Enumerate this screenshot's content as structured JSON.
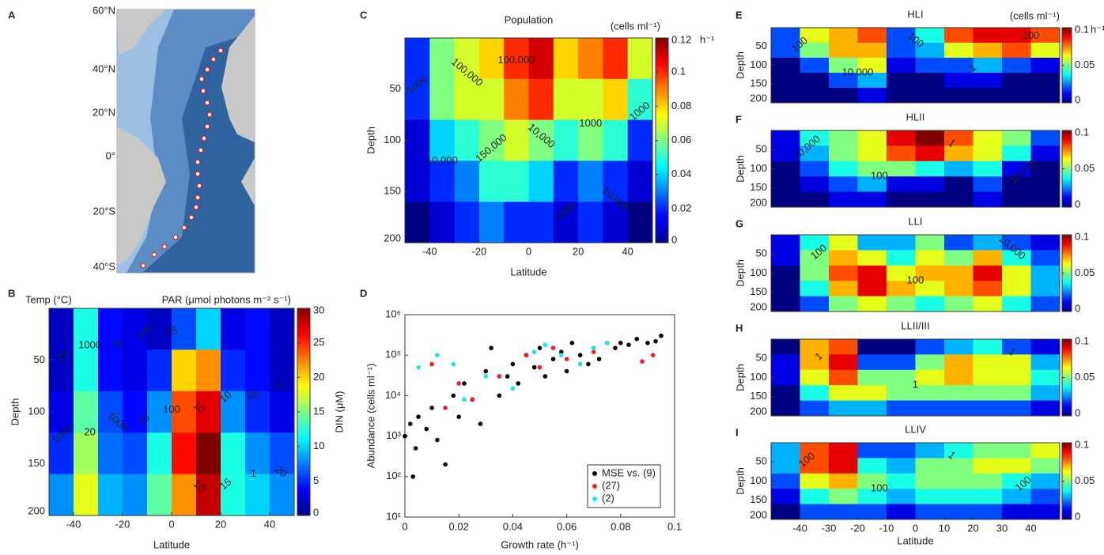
{
  "chart_data": [
    {
      "type": "map",
      "panel": "A",
      "lat_labels": [
        "60°N",
        "40°N",
        "20°N",
        "0°",
        "20°S",
        "40°S"
      ]
    },
    {
      "type": "heatmap",
      "panel": "B",
      "xlabel": "Latitude",
      "ylabel": "Depth",
      "zlabel": "DIN (μM)",
      "annotations": [
        "Temp (°C)",
        "PAR (μmol photons m⁻² s⁻¹)"
      ],
      "xbins": [
        -50,
        -40,
        -30,
        -20,
        -10,
        0,
        10,
        20,
        30,
        40,
        50
      ],
      "ybins": [
        0,
        40,
        80,
        120,
        160,
        200
      ],
      "z": [
        [
          2,
          12,
          4,
          3,
          2,
          6,
          10,
          3,
          4,
          2
        ],
        [
          2,
          12,
          4,
          3,
          5,
          20,
          22,
          5,
          4,
          2
        ],
        [
          3,
          14,
          6,
          4,
          8,
          24,
          27,
          8,
          5,
          3
        ],
        [
          5,
          16,
          7,
          6,
          12,
          26,
          30,
          12,
          8,
          6
        ],
        [
          8,
          18,
          9,
          8,
          14,
          22,
          28,
          12,
          10,
          8
        ]
      ],
      "xlim": [
        -50,
        50
      ],
      "xticks": [
        -40,
        -20,
        0,
        20,
        40
      ],
      "ylim": [
        0,
        200
      ],
      "yticks": [
        50,
        100,
        150,
        200
      ],
      "zlim": [
        0,
        30
      ],
      "zticks": [
        0,
        5,
        10,
        15,
        20,
        25,
        30
      ],
      "colormap": "jet",
      "contour_labels": [
        "25",
        "20",
        "20",
        "15",
        "15",
        "10",
        "15",
        "20",
        "20"
      ],
      "contour_labels_2": [
        "1000",
        "1000",
        "1000",
        "100",
        "100",
        "10",
        "10",
        "1",
        "1"
      ]
    },
    {
      "type": "heatmap",
      "panel": "C",
      "title": "Population",
      "unit": "(cells ml⁻¹)",
      "xlabel": "Latitude",
      "ylabel": "Depth",
      "zunit": "h⁻¹",
      "xbins": [
        -50,
        -40,
        -30,
        -20,
        -10,
        0,
        10,
        20,
        30,
        40,
        50
      ],
      "ybins": [
        0,
        40,
        80,
        120,
        160,
        200
      ],
      "z": [
        [
          0.02,
          0.06,
          0.07,
          0.08,
          0.1,
          0.11,
          0.08,
          0.09,
          0.1,
          0.07
        ],
        [
          0.02,
          0.06,
          0.07,
          0.07,
          0.09,
          0.1,
          0.07,
          0.07,
          0.08,
          0.05
        ],
        [
          0.01,
          0.04,
          0.05,
          0.06,
          0.07,
          0.06,
          0.05,
          0.06,
          0.05,
          0.02
        ],
        [
          0.01,
          0.02,
          0.03,
          0.05,
          0.05,
          0.04,
          0.02,
          0.03,
          0.02,
          0.01
        ],
        [
          0,
          0.01,
          0.02,
          0.03,
          0.02,
          0.02,
          0.01,
          0.02,
          0.01,
          0
        ]
      ],
      "xlim": [
        -50,
        50
      ],
      "xticks": [
        -40,
        -20,
        0,
        20,
        40
      ],
      "ylim": [
        0,
        200
      ],
      "yticks": [
        50,
        100,
        150,
        200
      ],
      "zlim": [
        0,
        0.12
      ],
      "zticks": [
        0,
        0.02,
        0.04,
        0.06,
        0.08,
        0.1,
        0.12
      ],
      "colormap": "jet",
      "contour_labels": [
        "1000",
        "10,000",
        "100,000",
        "150,000",
        "100,000",
        "10,000",
        "1000",
        "1000",
        "10,000",
        "1000"
      ]
    },
    {
      "type": "scatter",
      "panel": "D",
      "xlabel": "Growth rate (h⁻¹)",
      "ylabel": "Abundance (cells ml⁻¹)",
      "xlim": [
        0,
        0.1
      ],
      "xticks": [
        0,
        0.02,
        0.04,
        0.06,
        0.08,
        0.1
      ],
      "ylim": [
        10,
        1000000
      ],
      "log_y": true,
      "yticks": [
        {
          "value": 10,
          "label": "10¹"
        },
        {
          "value": 100,
          "label": "10²"
        },
        {
          "value": 1000,
          "label": "10³"
        },
        {
          "value": 10000,
          "label": "10⁴"
        },
        {
          "value": 100000,
          "label": "10⁵"
        },
        {
          "value": 1000000,
          "label": "10⁶"
        }
      ],
      "legend": "lower right",
      "series": [
        {
          "name": "MSE vs. (9)",
          "color": "#000000",
          "x": [
            0,
            0.002,
            0.004,
            0.005,
            0.008,
            0.01,
            0.012,
            0.015,
            0.018,
            0.02,
            0.022,
            0.025,
            0.028,
            0.03,
            0.032,
            0.035,
            0.038,
            0.04,
            0.042,
            0.045,
            0.048,
            0.05,
            0.052,
            0.055,
            0.058,
            0.06,
            0.062,
            0.065,
            0.068,
            0.07,
            0.072,
            0.075,
            0.078,
            0.08,
            0.083,
            0.086,
            0.09,
            0.093,
            0.095,
            0.003
          ],
          "values": [
            1000,
            2000,
            500,
            3000,
            1500,
            5000,
            800,
            200,
            10000,
            3000,
            20000,
            8000,
            2000,
            40000,
            150000,
            10000,
            30000,
            60000,
            20000,
            100000,
            50000,
            150000,
            30000,
            80000,
            120000,
            40000,
            200000,
            100000,
            60000,
            150000,
            80000,
            200000,
            150000,
            200000,
            180000,
            250000,
            200000,
            220000,
            300000,
            100
          ]
        },
        {
          "name": "(27)",
          "color": "#ff1a1a",
          "x": [
            0.01,
            0.015,
            0.02,
            0.025,
            0.035,
            0.045,
            0.05,
            0.055,
            0.06,
            0.07,
            0.088,
            0.092
          ],
          "values": [
            60000,
            5000,
            20000,
            8000,
            30000,
            100000,
            50000,
            150000,
            80000,
            120000,
            70000,
            100000
          ]
        },
        {
          "name": "(2)",
          "color": "#1ae6e6",
          "x": [
            0.005,
            0.012,
            0.018,
            0.022,
            0.03,
            0.04,
            0.048,
            0.052,
            0.058,
            0.065,
            0.07,
            0.075
          ],
          "values": [
            50000,
            100000,
            60000,
            8000,
            30000,
            15000,
            120000,
            180000,
            100000,
            60000,
            150000,
            200000
          ]
        }
      ]
    },
    {
      "type": "heatmap",
      "panel": "E",
      "title": "HLI",
      "unit": "(cells ml⁻¹)",
      "ylabel": "Depth",
      "zunit": "h⁻¹",
      "xbins": [
        -50,
        -40,
        -30,
        -20,
        -10,
        0,
        10,
        20,
        30,
        40,
        50
      ],
      "ybins": [
        0,
        40,
        80,
        120,
        160,
        200
      ],
      "z": [
        [
          0.02,
          0.06,
          0.07,
          0.08,
          0.02,
          0.04,
          0.08,
          0.09,
          0.09,
          0.08
        ],
        [
          0.02,
          0.05,
          0.07,
          0.07,
          0.02,
          0.03,
          0.06,
          0.07,
          0.08,
          0.06
        ],
        [
          0,
          0.02,
          0.05,
          0.06,
          0.01,
          0.02,
          0.02,
          0.03,
          0.02,
          0.01
        ],
        [
          0,
          0,
          0.02,
          0.03,
          0,
          0,
          0.01,
          0.01,
          0,
          0
        ],
        [
          0,
          0,
          0,
          0.01,
          0,
          0,
          0,
          0,
          0,
          0
        ]
      ],
      "xlim": [
        -50,
        50
      ],
      "ylim": [
        0,
        200
      ],
      "yticks": [
        50,
        100,
        150,
        200
      ],
      "zlim": [
        0,
        0.1
      ],
      "zticks": [
        0,
        0.05,
        0.1
      ],
      "colormap": "jet",
      "contour_labels": [
        "100",
        "10,000",
        "100",
        "1",
        "100"
      ]
    },
    {
      "type": "heatmap",
      "panel": "F",
      "title": "HLII",
      "ylabel": "Depth",
      "xbins": [
        -50,
        -40,
        -30,
        -20,
        -10,
        0,
        10,
        20,
        30,
        40,
        50
      ],
      "ybins": [
        0,
        40,
        80,
        120,
        160,
        200
      ],
      "z": [
        [
          0.01,
          0.04,
          0.05,
          0.06,
          0.09,
          0.1,
          0.08,
          0.06,
          0.05,
          0.02
        ],
        [
          0.01,
          0.03,
          0.05,
          0.06,
          0.08,
          0.09,
          0.07,
          0.06,
          0.04,
          0.01
        ],
        [
          0,
          0.02,
          0.04,
          0.05,
          0.05,
          0.04,
          0.03,
          0.04,
          0.01,
          0
        ],
        [
          0,
          0.01,
          0.02,
          0.03,
          0.01,
          0.01,
          0,
          0.02,
          0,
          0
        ],
        [
          0,
          0,
          0.01,
          0.01,
          0,
          0,
          0,
          0.01,
          0,
          0
        ]
      ],
      "xlim": [
        -50,
        50
      ],
      "ylim": [
        0,
        200
      ],
      "yticks": [
        50,
        100,
        150,
        200
      ],
      "zlim": [
        0,
        0.1
      ],
      "zticks": [
        0,
        0.05,
        0.1
      ],
      "colormap": "jet",
      "contour_labels": [
        "10,000",
        "100",
        "1",
        "10,000"
      ]
    },
    {
      "type": "heatmap",
      "panel": "G",
      "title": "LLI",
      "ylabel": "Depth",
      "xbins": [
        -50,
        -40,
        -30,
        -20,
        -10,
        0,
        10,
        20,
        30,
        40,
        50
      ],
      "ybins": [
        0,
        40,
        80,
        120,
        160,
        200
      ],
      "z": [
        [
          0.01,
          0.04,
          0.06,
          0.03,
          0.03,
          0.05,
          0.02,
          0.03,
          0.02,
          0.01
        ],
        [
          0.01,
          0.05,
          0.07,
          0.06,
          0.04,
          0.06,
          0.05,
          0.07,
          0.04,
          0.02
        ],
        [
          0,
          0.05,
          0.08,
          0.09,
          0.06,
          0.07,
          0.07,
          0.09,
          0.06,
          0.03
        ],
        [
          0,
          0.04,
          0.07,
          0.09,
          0.07,
          0.06,
          0.07,
          0.08,
          0.06,
          0.03
        ],
        [
          0,
          0.02,
          0.05,
          0.06,
          0.05,
          0.04,
          0.05,
          0.06,
          0.04,
          0.02
        ]
      ],
      "xlim": [
        -50,
        50
      ],
      "ylim": [
        0,
        200
      ],
      "yticks": [
        50,
        100,
        150,
        200
      ],
      "zlim": [
        0,
        0.1
      ],
      "zticks": [
        0,
        0.05,
        0.1
      ],
      "colormap": "jet",
      "contour_labels": [
        "100",
        "100",
        "10,000"
      ]
    },
    {
      "type": "heatmap",
      "panel": "H",
      "title": "LLII/III",
      "ylabel": "Depth",
      "xbins": [
        -50,
        -40,
        -30,
        -20,
        -10,
        0,
        10,
        20,
        30,
        40,
        50
      ],
      "ybins": [
        0,
        40,
        80,
        120,
        160,
        200
      ],
      "z": [
        [
          0,
          0.07,
          0.08,
          0,
          0,
          0.02,
          0.03,
          0.04,
          0.02,
          0.01
        ],
        [
          0.01,
          0.07,
          0.09,
          0.02,
          0.02,
          0.05,
          0.07,
          0.06,
          0.06,
          0.03
        ],
        [
          0.01,
          0.06,
          0.08,
          0.05,
          0.05,
          0.06,
          0.07,
          0.06,
          0.06,
          0.04
        ],
        [
          0,
          0.04,
          0.06,
          0.06,
          0.05,
          0.05,
          0.05,
          0.05,
          0.05,
          0.03
        ],
        [
          0,
          0.02,
          0.03,
          0.03,
          0.02,
          0.02,
          0.02,
          0.02,
          0.02,
          0.01
        ]
      ],
      "xlim": [
        -50,
        50
      ],
      "ylim": [
        0,
        200
      ],
      "yticks": [
        50,
        100,
        150,
        200
      ],
      "zlim": [
        0,
        0.1
      ],
      "zticks": [
        0,
        0.05,
        0.1
      ],
      "colormap": "jet",
      "contour_labels": [
        "1",
        "1",
        "1"
      ]
    },
    {
      "type": "heatmap",
      "panel": "I",
      "title": "LLIV",
      "xlabel": "Latitude",
      "ylabel": "Depth",
      "xbins": [
        -50,
        -40,
        -30,
        -20,
        -10,
        0,
        10,
        20,
        30,
        40,
        50
      ],
      "ybins": [
        0,
        40,
        80,
        120,
        160,
        200
      ],
      "z": [
        [
          0.03,
          0.08,
          0.09,
          0.02,
          0.02,
          0.03,
          0.04,
          0.05,
          0.05,
          0.06
        ],
        [
          0.03,
          0.08,
          0.09,
          0.04,
          0.03,
          0.05,
          0.05,
          0.06,
          0.06,
          0.05
        ],
        [
          0.02,
          0.06,
          0.07,
          0.05,
          0.04,
          0.05,
          0.05,
          0.05,
          0.04,
          0.03
        ],
        [
          0.01,
          0.04,
          0.05,
          0.04,
          0.03,
          0.04,
          0.04,
          0.04,
          0.03,
          0.02
        ],
        [
          0,
          0.02,
          0.02,
          0.02,
          0.01,
          0.02,
          0.02,
          0.02,
          0.01,
          0.01
        ]
      ],
      "xlim": [
        -50,
        50
      ],
      "xticks": [
        -40,
        -30,
        -20,
        -10,
        0,
        10,
        20,
        30,
        40
      ],
      "ylim": [
        0,
        200
      ],
      "yticks": [
        50,
        100,
        150,
        200
      ],
      "zlim": [
        0,
        0.1
      ],
      "zticks": [
        0,
        0.05,
        0.1
      ],
      "colormap": "jet",
      "contour_labels": [
        "100",
        "100",
        "1",
        "100"
      ]
    }
  ]
}
